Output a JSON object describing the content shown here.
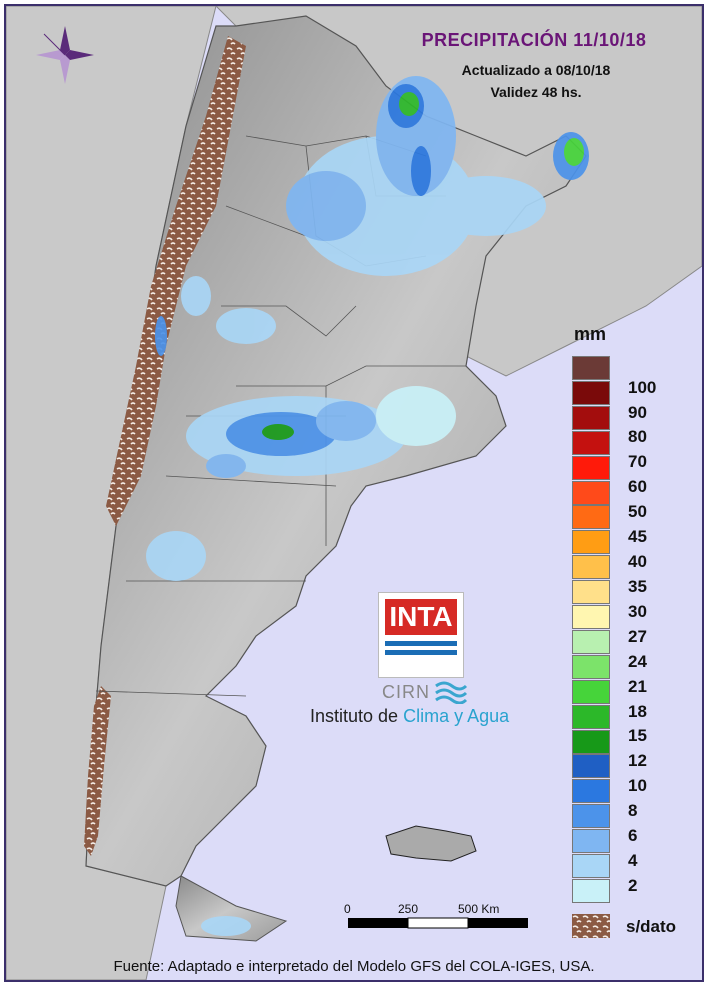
{
  "header": {
    "title": "PRECIPITACIÓN 11/10/18",
    "updated": "Actualizado a 08/10/18",
    "validity": "Validez 48 hs."
  },
  "legend": {
    "unit": "mm",
    "items": [
      {
        "label": "100",
        "color": "#6b3a36"
      },
      {
        "label": "90",
        "color": "#7a0a0a"
      },
      {
        "label": "80",
        "color": "#a30d0d"
      },
      {
        "label": "70",
        "color": "#c4110f"
      },
      {
        "label": "60",
        "color": "#ff1a0a"
      },
      {
        "label": "50",
        "color": "#ff4a1a"
      },
      {
        "label": "45",
        "color": "#ff6a14"
      },
      {
        "label": "40",
        "color": "#ff9d14"
      },
      {
        "label": "35",
        "color": "#ffc04a"
      },
      {
        "label": "30",
        "color": "#ffe08a"
      },
      {
        "label": "27",
        "color": "#fff6b0"
      },
      {
        "label": "24",
        "color": "#b8f0b0"
      },
      {
        "label": "21",
        "color": "#7ce36a"
      },
      {
        "label": "18",
        "color": "#46d43a"
      },
      {
        "label": "15",
        "color": "#2cb829"
      },
      {
        "label": "12",
        "color": "#179918"
      },
      {
        "label": "10",
        "color": "#1f5fc4"
      },
      {
        "label": "8",
        "color": "#2b78e0"
      },
      {
        "label": "6",
        "color": "#4c93ea"
      },
      {
        "label": "4",
        "color": "#7fb6f2"
      },
      {
        "label": "2",
        "color": "#a9d6f6"
      },
      {
        "label": "",
        "color": "#c9f1f8"
      }
    ],
    "no_data_label": "s/dato"
  },
  "scale_bar": {
    "labels": [
      "0",
      "250",
      "500 Km"
    ]
  },
  "logo": {
    "brand": "INTA",
    "center": "CIRN",
    "institute_prefix": "Instituto de",
    "institute_highlight": "Clima y Agua"
  },
  "footer": {
    "source": "Fuente: Adaptado e interpretado del Modelo GFS del COLA-IGES, USA."
  }
}
